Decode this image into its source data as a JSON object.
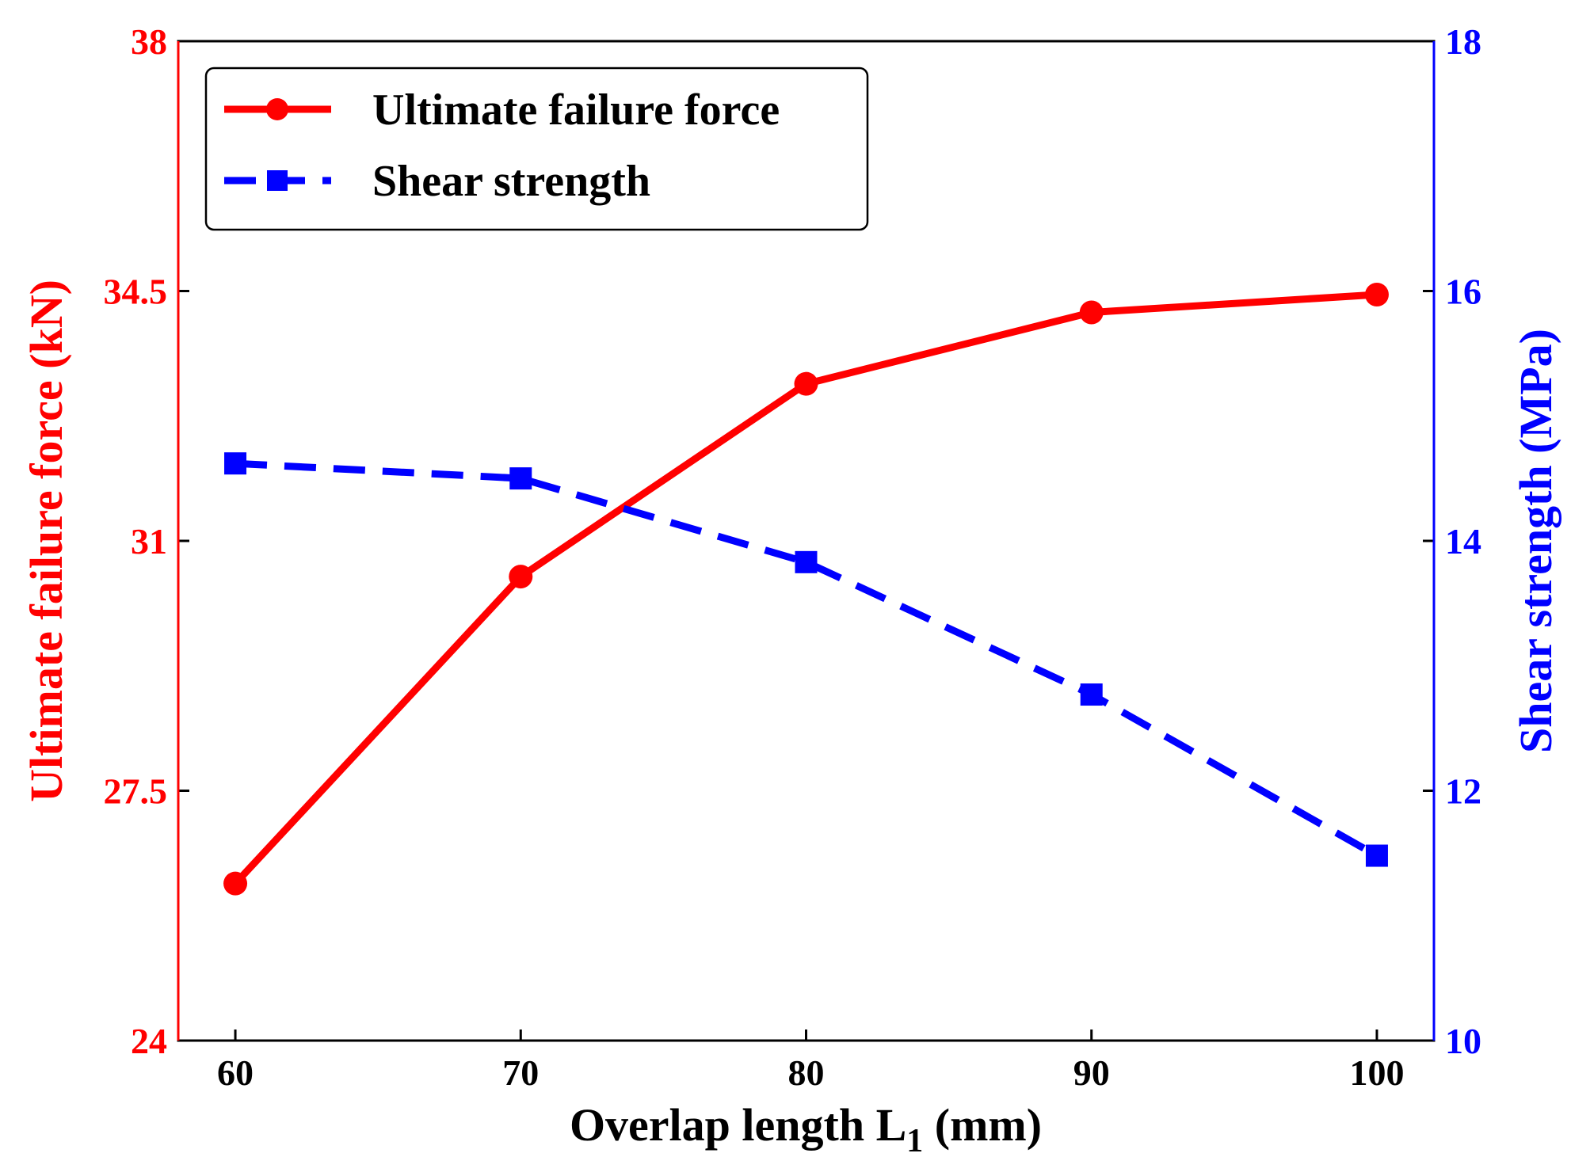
{
  "chart_data": {
    "type": "line",
    "x": [
      60,
      70,
      80,
      90,
      100
    ],
    "x_tick_labels": [
      "60",
      "70",
      "80",
      "90",
      "100"
    ],
    "xlim": [
      58,
      102
    ],
    "xlabel": {
      "main": "Overlap length L",
      "subscript": "1",
      "suffix": " (mm)"
    },
    "left_axis": {
      "label": "Ultimate failure force (kN)",
      "ylim": [
        24,
        38
      ],
      "ticks": [
        24,
        27.5,
        31,
        34.5,
        38
      ],
      "tick_labels": [
        "24",
        "27.5",
        "31",
        "34.5",
        "38"
      ],
      "color": "#ff0000"
    },
    "right_axis": {
      "label": "Shear strength (MPa)",
      "ylim": [
        10,
        18
      ],
      "ticks": [
        10,
        12,
        14,
        16,
        18
      ],
      "tick_labels": [
        "10",
        "12",
        "14",
        "16",
        "18"
      ],
      "color": "#0000ff"
    },
    "series": [
      {
        "name": "Ultimate failure force",
        "axis": "left",
        "values": [
          26.2,
          30.5,
          33.2,
          34.2,
          34.45
        ],
        "color": "#ff0000",
        "marker": "circle",
        "linestyle": "solid"
      },
      {
        "name": "Shear strength",
        "axis": "right",
        "values": [
          14.62,
          14.5,
          13.83,
          12.77,
          11.48
        ],
        "color": "#0000ff",
        "marker": "square",
        "linestyle": "dashed"
      }
    ],
    "legend_position": "top-left"
  }
}
